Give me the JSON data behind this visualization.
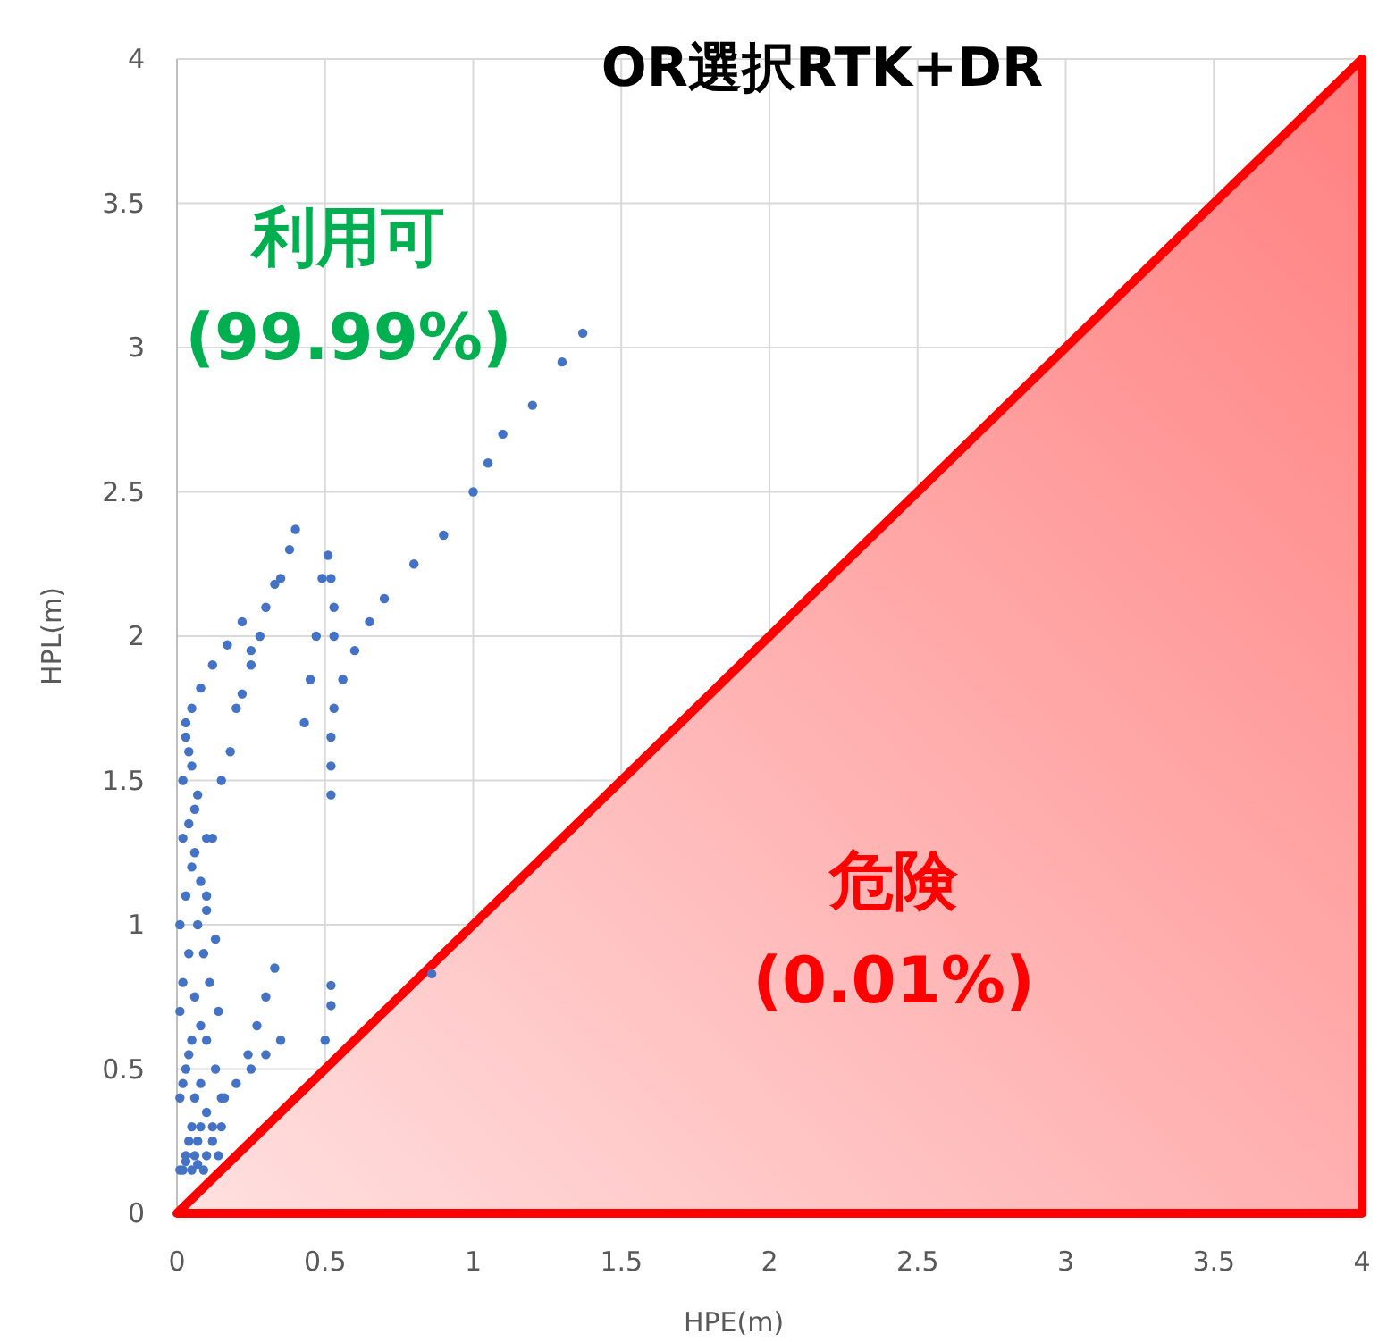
{
  "chart_data": {
    "type": "scatter",
    "title": "OR選択RTK+DR",
    "xlabel": "HPE(m)",
    "ylabel": "HPL(m)",
    "xlim": [
      0,
      4
    ],
    "ylim": [
      0,
      4
    ],
    "xticks": [
      0,
      0.5,
      1,
      1.5,
      2,
      2.5,
      3,
      3.5,
      4
    ],
    "yticks": [
      0,
      0.5,
      1,
      1.5,
      2,
      2.5,
      3,
      3.5,
      4
    ],
    "grid": true,
    "annotations": [
      "利用可\n(99.99%)",
      "危険\n(0.01%)"
    ],
    "series": [
      {
        "type": "area",
        "color": "#ff0000",
        "x": [
          0,
          4
        ],
        "values": [
          0,
          4
        ]
      },
      {
        "marker": "circle",
        "color": "#4472c4",
        "x": [
          0.52,
          0.52,
          0.52,
          0.53,
          0.56,
          0.6,
          0.65,
          0.7,
          0.8,
          0.9,
          1.0,
          1.05,
          1.1,
          1.2,
          1.3,
          1.37,
          0.51,
          0.52,
          0.53,
          0.53,
          0.4,
          0.38,
          0.35,
          0.3,
          0.25,
          0.2,
          0.15,
          0.12,
          0.1,
          0.33,
          0.28,
          0.25,
          0.22,
          0.18,
          0.05,
          0.08,
          0.12,
          0.17,
          0.22,
          0.03,
          0.49,
          0.47,
          0.45,
          0.43,
          0.52,
          0.52,
          0.35,
          0.3,
          0.25,
          0.2,
          0.15,
          0.86,
          0.5,
          0.33,
          0.3,
          0.27,
          0.24,
          0.02,
          0.03,
          0.04,
          0.05,
          0.06,
          0.07,
          0.08,
          0.1,
          0.12,
          0.14,
          0.01,
          0.02,
          0.03,
          0.04,
          0.05,
          0.06,
          0.08,
          0.1,
          0.12,
          0.15,
          0.01,
          0.02,
          0.04,
          0.06,
          0.08,
          0.1,
          0.13,
          0.16,
          0.01,
          0.03,
          0.05,
          0.07,
          0.09,
          0.11,
          0.14,
          0.02,
          0.04,
          0.06,
          0.08,
          0.1,
          0.13,
          0.01,
          0.03,
          0.05,
          0.07,
          0.09,
          0.02,
          0.04,
          0.06,
          0.03,
          0.05,
          0.07,
          0.1
        ],
        "values": [
          1.45,
          1.55,
          1.65,
          1.75,
          1.85,
          1.95,
          2.05,
          2.13,
          2.25,
          2.35,
          2.5,
          2.6,
          2.7,
          2.8,
          2.95,
          3.05,
          2.28,
          2.2,
          2.1,
          2.0,
          2.37,
          2.3,
          2.2,
          2.1,
          1.95,
          1.75,
          1.5,
          1.3,
          1.1,
          2.18,
          2.0,
          1.9,
          1.8,
          1.6,
          1.75,
          1.82,
          1.9,
          1.97,
          2.05,
          1.65,
          2.2,
          2.0,
          1.85,
          1.7,
          0.79,
          0.72,
          0.6,
          0.55,
          0.5,
          0.45,
          0.4,
          0.83,
          0.6,
          0.85,
          0.75,
          0.65,
          0.55,
          0.15,
          0.2,
          0.25,
          0.3,
          0.2,
          0.25,
          0.3,
          0.2,
          0.25,
          0.2,
          0.4,
          0.45,
          0.5,
          0.55,
          0.6,
          0.4,
          0.45,
          0.35,
          0.3,
          0.3,
          0.7,
          0.8,
          0.9,
          0.75,
          0.65,
          0.6,
          0.5,
          0.4,
          1.0,
          1.1,
          1.2,
          1.0,
          0.9,
          0.8,
          0.7,
          1.3,
          1.35,
          1.25,
          1.15,
          1.05,
          0.95,
          0.15,
          0.18,
          0.15,
          0.17,
          0.15,
          1.5,
          1.6,
          1.4,
          1.7,
          1.55,
          1.45,
          1.3
        ]
      }
    ]
  }
}
